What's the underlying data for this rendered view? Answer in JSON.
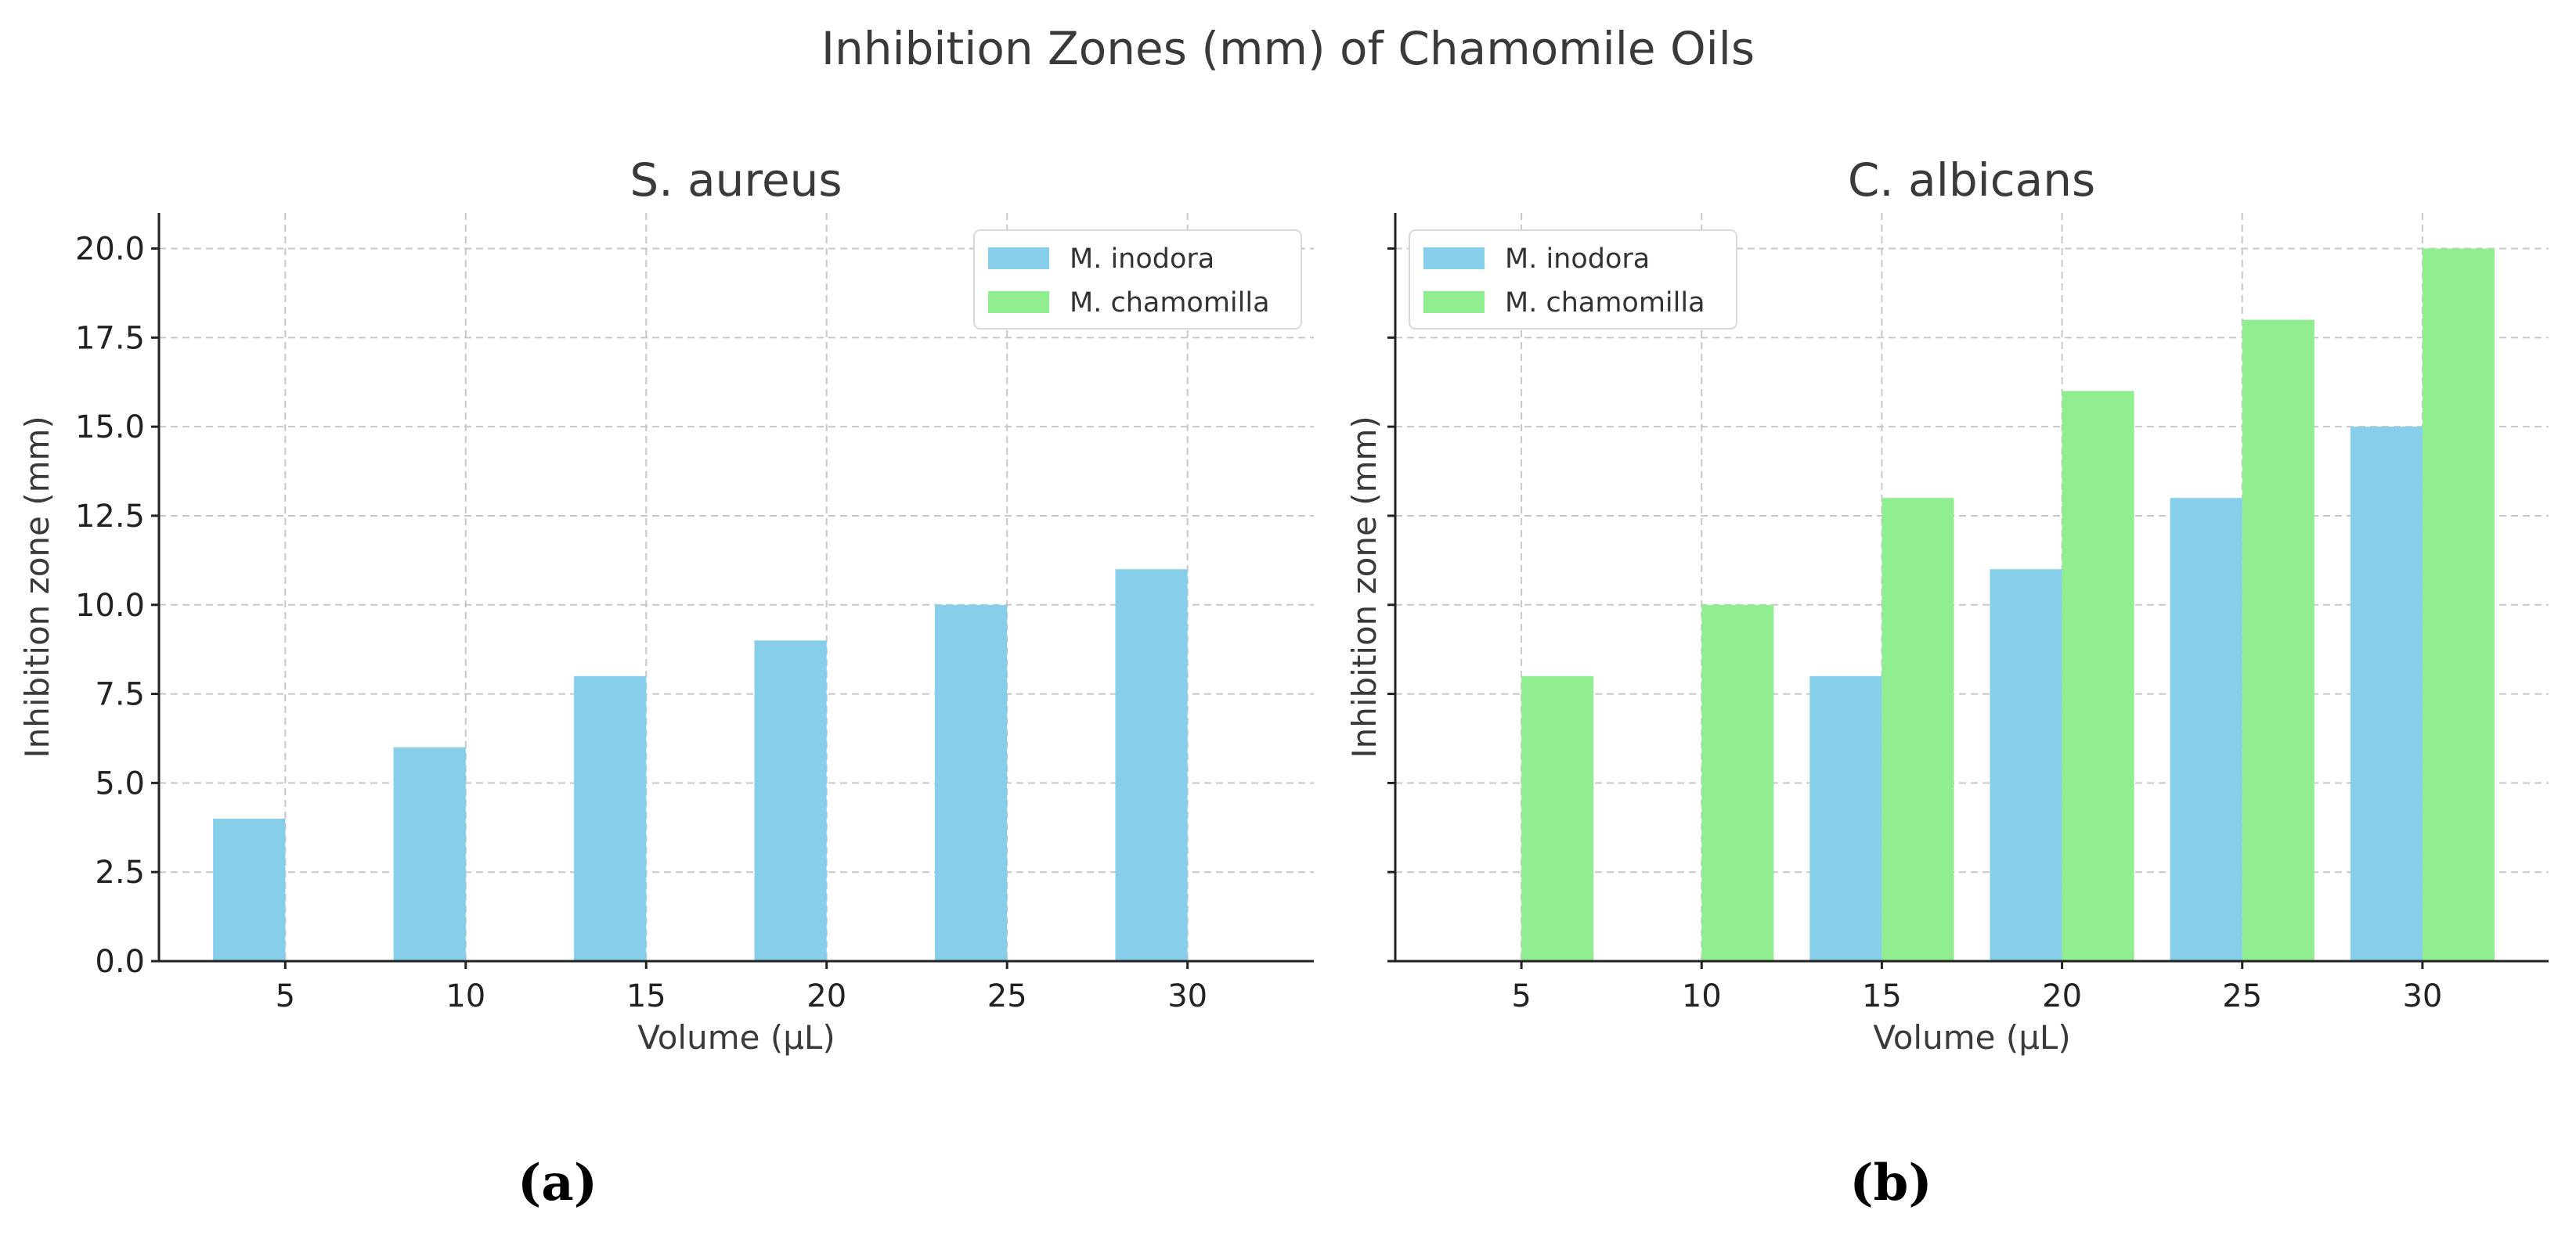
{
  "figure": {
    "suptitle": "Inhibition Zones (mm) of Chamomile Oils",
    "panel_labels": [
      "(a)",
      "(b)"
    ]
  },
  "colors": {
    "inodora": "#87ceeb",
    "chamomilla": "#90ee90",
    "grid": "#c8c8c8",
    "axis": "#222222"
  },
  "chart_data": [
    {
      "type": "bar",
      "title": "S. aureus",
      "xlabel": "Volume (μL)",
      "ylabel": "Inhibition zone (mm)",
      "categories": [
        "5",
        "10",
        "15",
        "20",
        "25",
        "30"
      ],
      "ylim": [
        0,
        21
      ],
      "yticks": [
        "0.0",
        "2.5",
        "5.0",
        "7.5",
        "10.0",
        "12.5",
        "15.0",
        "17.5",
        "20.0"
      ],
      "ytick_values": [
        0,
        2.5,
        5,
        7.5,
        10,
        12.5,
        15,
        17.5,
        20
      ],
      "show_ytick_labels": true,
      "grid": true,
      "legend_position": "top-right",
      "series": [
        {
          "name": "M. inodora",
          "values": [
            4,
            6,
            8,
            9,
            10,
            11
          ],
          "color_key": "inodora"
        },
        {
          "name": "M. chamomilla",
          "values": [
            0,
            0,
            0,
            0,
            0,
            0
          ],
          "color_key": "chamomilla"
        }
      ]
    },
    {
      "type": "bar",
      "title": "C. albicans",
      "xlabel": "Volume (μL)",
      "ylabel": "Inhibition zone (mm)",
      "categories": [
        "5",
        "10",
        "15",
        "20",
        "25",
        "30"
      ],
      "ylim": [
        0,
        21
      ],
      "yticks": [
        "0.0",
        "2.5",
        "5.0",
        "7.5",
        "10.0",
        "12.5",
        "15.0",
        "17.5",
        "20.0"
      ],
      "ytick_values": [
        0,
        2.5,
        5,
        7.5,
        10,
        12.5,
        15,
        17.5,
        20
      ],
      "show_ytick_labels": false,
      "grid": true,
      "legend_position": "top-left",
      "series": [
        {
          "name": "M. inodora",
          "values": [
            0,
            0,
            8,
            11,
            13,
            15
          ],
          "color_key": "inodora"
        },
        {
          "name": "M. chamomilla",
          "values": [
            8,
            10,
            13,
            16,
            18,
            20
          ],
          "color_key": "chamomilla"
        }
      ]
    }
  ]
}
